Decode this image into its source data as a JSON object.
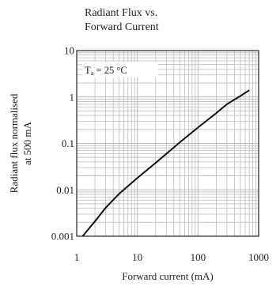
{
  "chart_data": {
    "type": "line",
    "title": [
      "Radiant Flux vs.",
      "Forward Current"
    ],
    "xlabel": "Forward current (mA)",
    "ylabel": [
      "Radiant flux normalised",
      "at 500 mA"
    ],
    "x_scale": "log",
    "y_scale": "log",
    "xlim": [
      1,
      1000
    ],
    "ylim": [
      0.001,
      10
    ],
    "x_ticks": [
      1,
      10,
      100,
      1000
    ],
    "x_tick_labels": [
      "1",
      "10",
      "100",
      "1000"
    ],
    "y_ticks": [
      0.001,
      0.01,
      0.1,
      1,
      10
    ],
    "y_tick_labels": [
      "0.001",
      "0.01",
      "0.1",
      "1",
      "10"
    ],
    "grid": true,
    "annotation": {
      "main": "T",
      "sub": "a",
      "rest": " = 25 °C"
    },
    "series": [
      {
        "x": [
          1.25,
          2,
          3,
          5,
          10,
          20,
          50,
          100,
          200,
          300,
          500,
          700
        ],
        "y": [
          0.001,
          0.0021,
          0.0041,
          0.0082,
          0.018,
          0.038,
          0.105,
          0.22,
          0.45,
          0.7,
          1.05,
          1.4
        ]
      }
    ],
    "colors": {
      "line": "#111111",
      "grid": "#bdbdbd",
      "frame": "#222222",
      "text": "#222222"
    }
  }
}
